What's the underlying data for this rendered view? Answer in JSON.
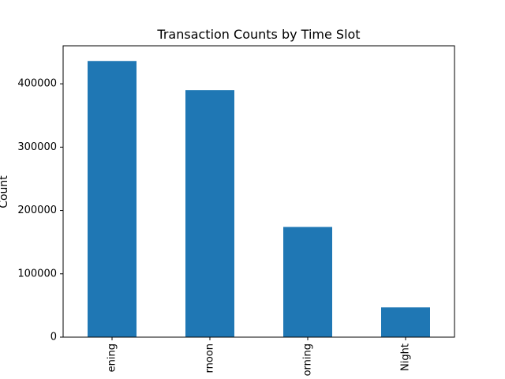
{
  "chart_data": {
    "type": "bar",
    "title": "Transaction Counts by Time Slot",
    "xlabel": "",
    "ylabel": "Count",
    "categories": [
      "Evening",
      "Afternoon",
      "Morning",
      "Night"
    ],
    "category_labels_visible": [
      "ening",
      "rnoon",
      "orning",
      "Night"
    ],
    "values": [
      436000,
      390000,
      174000,
      47000
    ],
    "ylim": [
      0,
      460000
    ],
    "yticks": [
      0,
      100000,
      200000,
      300000,
      400000
    ],
    "ytick_labels": [
      "0",
      "100000",
      "200000",
      "300000",
      "400000"
    ],
    "bar_color": "#1f77b4",
    "grid": false,
    "legend": "none"
  }
}
